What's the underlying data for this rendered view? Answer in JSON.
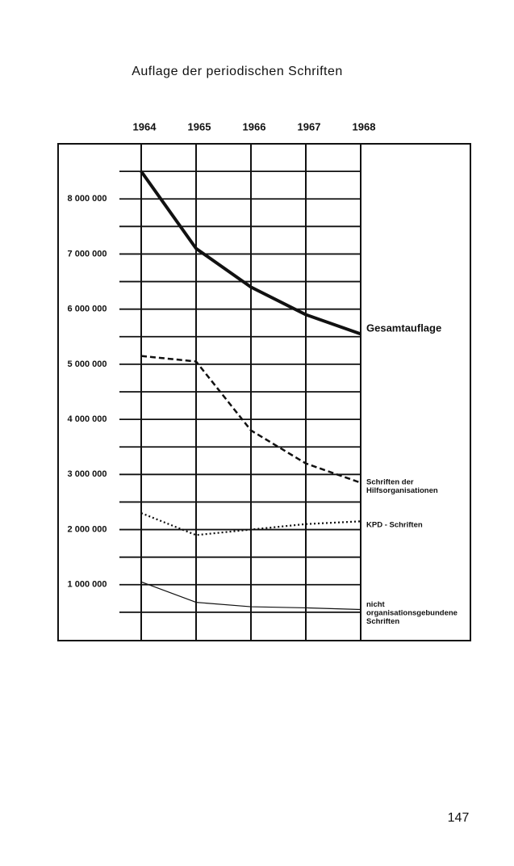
{
  "title": "Auflage der periodischen Schriften",
  "page_number": "147",
  "chart_data": {
    "type": "line",
    "x": [
      1964,
      1965,
      1966,
      1967,
      1968
    ],
    "xlim": [
      1964,
      1968
    ],
    "xticks": [
      1964,
      1965,
      1966,
      1967,
      1968
    ],
    "ylim": [
      0,
      9000000
    ],
    "yticks": [
      {
        "value": 1000000,
        "label": "1 000 000"
      },
      {
        "value": 2000000,
        "label": "2 000 000"
      },
      {
        "value": 3000000,
        "label": "3 000 000"
      },
      {
        "value": 4000000,
        "label": "4 000 000"
      },
      {
        "value": 5000000,
        "label": "5 000 000"
      },
      {
        "value": 6000000,
        "label": "6 000 000"
      },
      {
        "value": 7000000,
        "label": "7 000 000"
      },
      {
        "value": 8000000,
        "label": "8 000 000"
      }
    ],
    "minor_yticks": [
      500000,
      1500000,
      2500000,
      3500000,
      4500000,
      5500000,
      6500000,
      7500000,
      8500000
    ],
    "grid": true,
    "series": [
      {
        "name": "Gesamtauflage",
        "color": "#111111",
        "linestyle": "solid",
        "linewidth": 4,
        "values": [
          8500000,
          7100000,
          6400000,
          5900000,
          5550000
        ]
      },
      {
        "name": "Schriften der\nHilfsorganisationen",
        "color": "#111111",
        "linestyle": "dashed",
        "linewidth": 2.5,
        "values": [
          5150000,
          5050000,
          3800000,
          3200000,
          2850000
        ]
      },
      {
        "name": "KPD - Schriften",
        "color": "#111111",
        "linestyle": "dotted",
        "linewidth": 2.2,
        "values": [
          2300000,
          1900000,
          2000000,
          2100000,
          2150000
        ]
      },
      {
        "name": "nicht\norganisationsgebundene\nSchriften",
        "color": "#111111",
        "linestyle": "solid",
        "linewidth": 1.2,
        "values": [
          1050000,
          680000,
          600000,
          580000,
          550000
        ]
      }
    ]
  }
}
